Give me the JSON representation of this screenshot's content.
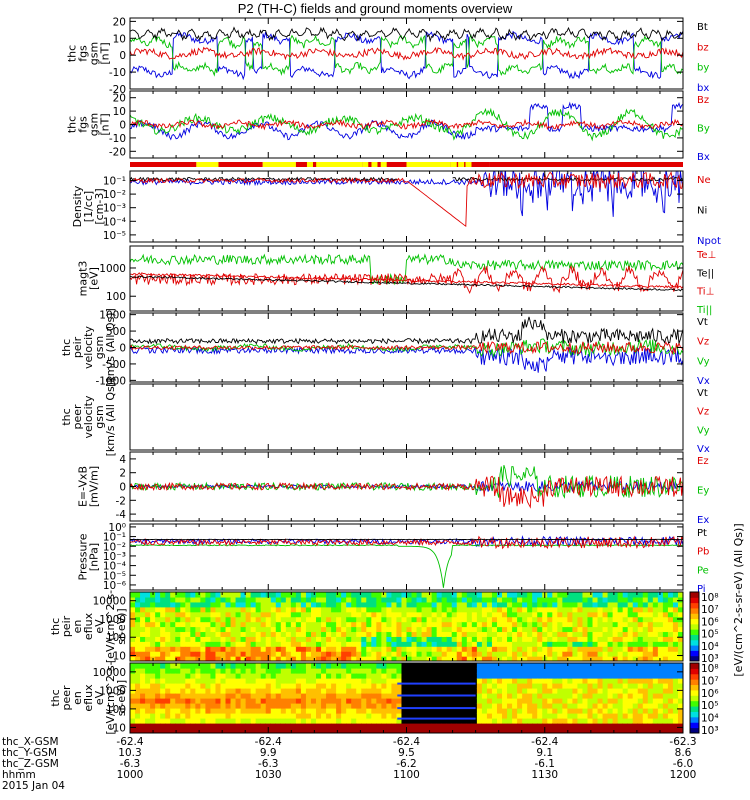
{
  "chart_data": {
    "type": "line",
    "title": "P2 (TH-C) fields and ground moments overview",
    "date": "2015 Jan 04",
    "panels": [
      {
        "id": "fgs",
        "ylabel": [
          "thc",
          "fgs",
          "gsm",
          "[nT]"
        ],
        "ticks": [
          "20",
          "10",
          "0",
          "-10",
          "-20"
        ],
        "tick_values": [
          20,
          10,
          0,
          -10,
          -20
        ],
        "ylim": [
          -20,
          22
        ],
        "log": false,
        "legend": [
          {
            "label": "Bt",
            "color": "#000000"
          },
          {
            "label": "bz",
            "color": "#e00000"
          },
          {
            "label": "by",
            "color": "#00c000"
          },
          {
            "label": "bx",
            "color": "#0000e0"
          }
        ]
      },
      {
        "id": "fgs2",
        "ylabel": [
          "thc",
          "fgs",
          "gsm",
          "[nT]"
        ],
        "ticks": [
          "20",
          "10",
          "0",
          "-10",
          "-20"
        ],
        "tick_values": [
          20,
          10,
          0,
          -10,
          -20
        ],
        "ylim": [
          -25,
          25
        ],
        "log": false,
        "legend": [
          {
            "label": "Bz",
            "color": "#e00000"
          },
          {
            "label": "By",
            "color": "#00c000"
          },
          {
            "label": "Bx",
            "color": "#0000e0"
          }
        ]
      },
      {
        "id": "density",
        "ylabel": [
          "Density",
          "[1/cc]",
          "[cm-3]"
        ],
        "ticks": [
          "10⁻¹",
          "10⁻²",
          "10⁻³",
          "10⁻⁴",
          "10⁻⁵"
        ],
        "tick_values": [
          0.1,
          0.01,
          0.001,
          0.0001,
          1e-05
        ],
        "ylim": [
          3e-06,
          0.5
        ],
        "log": true,
        "legend": [
          {
            "label": "Ne",
            "color": "#e00000"
          },
          {
            "label": "Ni",
            "color": "#000000"
          },
          {
            "label": "Npot",
            "color": "#0000e0"
          }
        ]
      },
      {
        "id": "temp",
        "ylabel": [
          "magt3",
          "[eV]"
        ],
        "ticks": [
          "1000",
          "100"
        ],
        "tick_values": [
          1000,
          100
        ],
        "ylim": [
          30,
          6000
        ],
        "log": true,
        "legend": [
          {
            "label": "Te⊥",
            "color": "#e00000"
          },
          {
            "label": "Te||",
            "color": "#000000"
          },
          {
            "label": "Ti⊥",
            "color": "#e00000"
          },
          {
            "label": "Ti||",
            "color": "#00c000"
          }
        ]
      },
      {
        "id": "vi",
        "ylabel": [
          "thc",
          "peir",
          "velocity",
          "gsm",
          "[km/s (All Qs)]"
        ],
        "ticks": [
          "1000",
          "500",
          "0",
          "-500",
          "-1000"
        ],
        "tick_values": [
          1000,
          500,
          0,
          -500,
          -1000
        ],
        "ylim": [
          -1050,
          1050
        ],
        "log": false,
        "legend": [
          {
            "label": "Vt",
            "color": "#000000"
          },
          {
            "label": "Vz",
            "color": "#e00000"
          },
          {
            "label": "Vy",
            "color": "#00c000"
          },
          {
            "label": "Vx",
            "color": "#0000e0"
          }
        ]
      },
      {
        "id": "ve",
        "ylabel": [
          "thc",
          "peer",
          "velocity",
          "gsm",
          "[km/s (All Qs)]"
        ],
        "ticks": [],
        "tick_values": [],
        "ylim": [
          -1000,
          1000
        ],
        "log": false,
        "legend": [
          {
            "label": "Vt",
            "color": "#000000"
          },
          {
            "label": "Vz",
            "color": "#e00000"
          },
          {
            "label": "Vy",
            "color": "#00c000"
          },
          {
            "label": "Vx",
            "color": "#0000e0"
          }
        ]
      },
      {
        "id": "efield",
        "ylabel": [
          "E=-VxB",
          "[mV/m]"
        ],
        "ticks": [
          "4",
          "2",
          "0",
          "-2",
          "-4"
        ],
        "tick_values": [
          4,
          2,
          0,
          -2,
          -4
        ],
        "ylim": [
          -5,
          5
        ],
        "log": false,
        "legend": [
          {
            "label": "Ez",
            "color": "#e00000"
          },
          {
            "label": "Ey",
            "color": "#00c000"
          },
          {
            "label": "Ex",
            "color": "#0000e0"
          }
        ]
      },
      {
        "id": "pressure",
        "ylabel": [
          "Pressure",
          "[nPa]"
        ],
        "ticks": [
          "10⁰",
          "10⁻¹",
          "10⁻²",
          "10⁻³",
          "10⁻⁴",
          "10⁻⁵",
          "10⁻⁶"
        ],
        "tick_values": [
          1,
          0.1,
          0.01,
          0.001,
          0.0001,
          1e-05,
          1e-06
        ],
        "ylim": [
          3e-07,
          2
        ],
        "log": true,
        "legend": [
          {
            "label": "Pt",
            "color": "#000000"
          },
          {
            "label": "Pb",
            "color": "#e00000"
          },
          {
            "label": "Pe",
            "color": "#00c000"
          },
          {
            "label": "Pi",
            "color": "#0000e0"
          }
        ]
      },
      {
        "id": "ispec",
        "type": "spectrogram",
        "ylabel": [
          "thc",
          "peir",
          "en",
          "eflux",
          "eV",
          "[eV/(cm^2-s-",
          "sr-eV)]"
        ],
        "ticks": [
          "10000",
          "1000",
          "100",
          "10"
        ],
        "tick_values": [
          10000,
          1000,
          100,
          10
        ],
        "ylim": [
          5,
          30000
        ],
        "log": true,
        "colorbar_ticks": [
          "10⁸",
          "10⁷",
          "10⁶",
          "10⁵",
          "10⁴",
          "10³"
        ],
        "colorbar_label": "[eV/(cm^2-s-sr-eV) (All Qs)]"
      },
      {
        "id": "espec",
        "type": "spectrogram",
        "ylabel": [
          "thc",
          "peer",
          "en",
          "eflux",
          "eV",
          "[eV/(cm^2-s-",
          "sr-eV)]"
        ],
        "ticks": [
          "10000",
          "1000",
          "100",
          "10"
        ],
        "tick_values": [
          10000,
          1000,
          100,
          10
        ],
        "ylim": [
          5,
          30000
        ],
        "log": true,
        "colorbar_ticks": [
          "10⁸",
          "10⁷",
          "10⁶",
          "10⁵",
          "10⁴",
          "10³"
        ],
        "colorbar_label": "[eV/(cm^2-s-sr-eV) (All Qs)]"
      }
    ],
    "xaxis": {
      "rows": [
        {
          "label": "thc_X-GSM",
          "values": [
            "-62.4",
            "-62.4",
            "-62.4",
            "-62.4",
            "-62.3"
          ]
        },
        {
          "label": "thc_Y-GSM",
          "values": [
            "10.3",
            "9.9",
            "9.5",
            "9.1",
            "8.6"
          ]
        },
        {
          "label": "thc_Z-GSM",
          "values": [
            "-6.3",
            "-6.3",
            "-6.2",
            "-6.1",
            "-6.0"
          ]
        },
        {
          "label": "hhmm",
          "values": [
            "1000",
            "1030",
            "1100",
            "1130",
            "1200"
          ]
        }
      ],
      "xlim": [
        0,
        120
      ]
    },
    "data_gap": {
      "start": 58,
      "end": 75
    },
    "colors": {
      "black": "#000000",
      "red": "#e00000",
      "green": "#00c000",
      "blue": "#0000e0"
    }
  }
}
